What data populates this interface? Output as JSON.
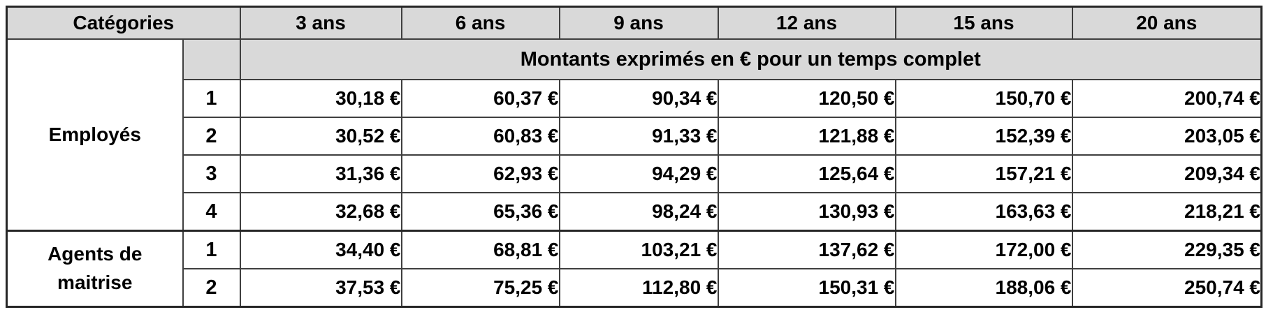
{
  "table": {
    "corner_header": "Catégories",
    "year_headers": [
      "3 ans",
      "6 ans",
      "9 ans",
      "12 ans",
      "15 ans",
      "20 ans"
    ],
    "subtitle": "Montants exprimés en € pour un temps complet",
    "groups": [
      {
        "name": "Employés",
        "rows": [
          {
            "level": "1",
            "values": [
              "30,18 €",
              "60,37 €",
              "90,34 €",
              "120,50 €",
              "150,70 €",
              "200,74 €"
            ]
          },
          {
            "level": "2",
            "values": [
              "30,52 €",
              "60,83 €",
              "91,33 €",
              "121,88 €",
              "152,39 €",
              "203,05 €"
            ]
          },
          {
            "level": "3",
            "values": [
              "31,36 €",
              "62,93 €",
              "94,29 €",
              "125,64 €",
              "157,21 €",
              "209,34 €"
            ]
          },
          {
            "level": "4",
            "values": [
              "32,68 €",
              "65,36 €",
              "98,24 €",
              "130,93 €",
              "163,63 €",
              "218,21 €"
            ]
          }
        ]
      },
      {
        "name": "Agents de maitrise",
        "rows": [
          {
            "level": "1",
            "values": [
              "34,40 €",
              "68,81 €",
              "103,21 €",
              "137,62 €",
              "172,00 €",
              "229,35 €"
            ]
          },
          {
            "level": "2",
            "values": [
              "37,53 €",
              "75,25 €",
              "112,80 €",
              "150,31 €",
              "188,06 €",
              "250,74 €"
            ]
          }
        ]
      }
    ]
  },
  "colors": {
    "header_fill": "#d9d9d9",
    "border": "#3f3f3f",
    "outer_border": "#262626",
    "text": "#000000"
  }
}
